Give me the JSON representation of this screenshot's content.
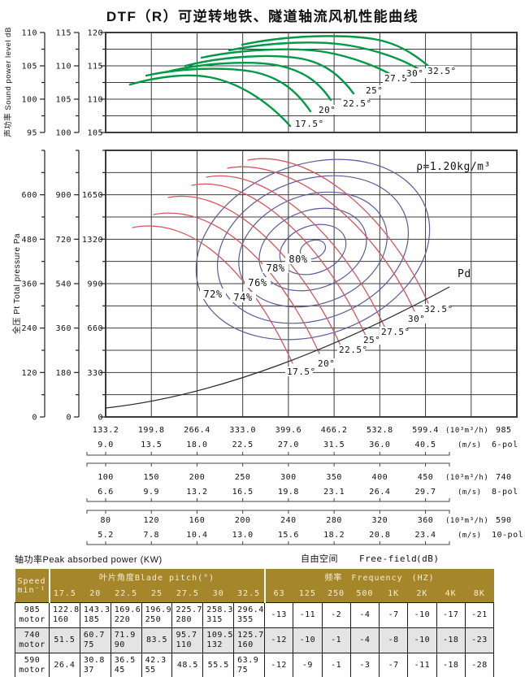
{
  "page_title": "DTF（R）可逆转地铁、隧道轴流风机性能曲线",
  "colors": {
    "curve_green": "#009946",
    "curve_red": "#d4555e",
    "contour_blue": "#5b5b9e",
    "pd_black": "#2a2a2a",
    "grid": "#3c3c3c",
    "table_header_bg": "#a6862a",
    "table_header_fg": "#f6efd4",
    "shaded_row": "#e4e4e4"
  },
  "top_chart": {
    "y_axis_title": "声功率 Sound power level dB",
    "y_axes": [
      {
        "labels": [
          "110",
          "105",
          "100",
          "95"
        ]
      },
      {
        "labels": [
          "115",
          "110",
          "105",
          "100"
        ]
      },
      {
        "labels": [
          "120",
          "115",
          "110",
          "105"
        ]
      }
    ],
    "curve_labels": [
      "17.5°",
      "20°",
      "22.5°",
      "25°",
      "27.5°",
      "30°",
      "32.5°"
    ]
  },
  "main_chart": {
    "y_axis_title": "全压 Pt Total pressure Pa",
    "y_axes": [
      {
        "labels": [
          "600",
          "480",
          "360",
          "240",
          "120",
          "0"
        ]
      },
      {
        "labels": [
          "900",
          "720",
          "540",
          "360",
          "180",
          "0"
        ]
      },
      {
        "labels": [
          "1650",
          "1320",
          "990",
          "660",
          "330",
          "0"
        ]
      }
    ],
    "density_label": "ρ=1.20kg/m³",
    "pd_label": "Pd",
    "efficiency_labels": [
      "72%",
      "74%",
      "76%",
      "78%",
      "80%"
    ],
    "pitch_labels": [
      "17.5°",
      "20°",
      "22.5°",
      "25°",
      "27.5°",
      "30°",
      "32.5°"
    ]
  },
  "x_scales": [
    {
      "flow": [
        "133.2",
        "199.8",
        "266.4",
        "333.0",
        "399.6",
        "466.2",
        "532.8",
        "599.4"
      ],
      "flow_unit": "(10³m³/h)",
      "speed": "985",
      "vel": [
        "9.0",
        "13.5",
        "18.0",
        "22.5",
        "27.0",
        "31.5",
        "36.0",
        "40.5"
      ],
      "vel_unit": "(m/s)",
      "pole": "6-pol"
    },
    {
      "flow": [
        "100",
        "150",
        "200",
        "250",
        "300",
        "350",
        "400",
        "450"
      ],
      "flow_unit": "(10³m³/h)",
      "speed": "740",
      "vel": [
        "6.6",
        "9.9",
        "13.2",
        "16.5",
        "19.8",
        "23.1",
        "26.4",
        "29.7"
      ],
      "vel_unit": "(m/s)",
      "pole": "8-pol"
    },
    {
      "flow": [
        "80",
        "120",
        "160",
        "200",
        "240",
        "280",
        "320",
        "360"
      ],
      "flow_unit": "(10³m³/h)",
      "speed": "590",
      "vel": [
        "5.2",
        "7.8",
        "10.4",
        "13.0",
        "15.6",
        "18.2",
        "20.8",
        "23.4"
      ],
      "vel_unit": "(m/s)",
      "pole": "10-pol"
    }
  ],
  "footer": {
    "left": "轴功率Peak absorbed power (KW)",
    "free_field_cn": "自由空间",
    "free_field_en": "Free-field",
    "free_field_unit": "(dB)"
  },
  "table": {
    "col1_line1": "Speed",
    "col1_line2": "min⁻¹",
    "pitch_header": "叶片角度Blade pitch(°)",
    "freq_header": "频率　Frequency　(HZ)",
    "pitch_cols": [
      "17.5",
      "20",
      "22.5",
      "25",
      "27.5",
      "30",
      "32.5"
    ],
    "freq_cols": [
      "63",
      "125",
      "250",
      "500",
      "1K",
      "2K",
      "4K",
      "8K"
    ],
    "rows": [
      {
        "speed": "985",
        "sub": "motor",
        "shaded": false,
        "pitch": [
          [
            "122.8",
            "160"
          ],
          [
            "143.3",
            "185"
          ],
          [
            "169.6",
            "220"
          ],
          [
            "196.9",
            "250"
          ],
          [
            "225.7",
            "280"
          ],
          [
            "258.3",
            "315"
          ],
          [
            "296.4",
            "355"
          ]
        ],
        "freq": [
          "-13",
          "-11",
          "-2",
          "-4",
          "-7",
          "-10",
          "-17",
          "-21"
        ]
      },
      {
        "speed": "740",
        "sub": "motor",
        "shaded": true,
        "pitch": [
          [
            "51.5"
          ],
          [
            "60.7",
            "75"
          ],
          [
            "71.9",
            "90"
          ],
          [
            "83.5"
          ],
          [
            "95.7",
            "110"
          ],
          [
            "109.5",
            "132"
          ],
          [
            "125.7",
            "160"
          ]
        ],
        "freq": [
          "-12",
          "-10",
          "-1",
          "-4",
          "-8",
          "-10",
          "-18",
          "-23"
        ]
      },
      {
        "speed": "590",
        "sub": "motor",
        "shaded": false,
        "pitch": [
          [
            "26.4"
          ],
          [
            "30.8",
            "37"
          ],
          [
            "36.5",
            "45"
          ],
          [
            "42.3",
            "55"
          ],
          [
            "48.5"
          ],
          [
            "55.5"
          ],
          [
            "63.9",
            "75"
          ]
        ],
        "freq": [
          "-12",
          "-9",
          "-1",
          "-3",
          "-7",
          "-11",
          "-18",
          "-28"
        ]
      }
    ]
  },
  "chart_data": [
    {
      "type": "line",
      "name": "sound-power-level-curves",
      "ylabel": "声功率 Sound power level dB",
      "grid": true,
      "y_scales": [
        {
          "min": 95,
          "max": 110,
          "step": 5
        },
        {
          "min": 100,
          "max": 115,
          "step": 5
        },
        {
          "min": 105,
          "max": 120,
          "step": 5
        }
      ],
      "x_axis": "shared with pressure chart flow scales",
      "series": [
        {
          "name": "17.5°",
          "approx_peak_dB_top_scale": 112.5
        },
        {
          "name": "20°",
          "approx_peak_dB_top_scale": 114
        },
        {
          "name": "22.5°",
          "approx_peak_dB_top_scale": 115
        },
        {
          "name": "25°",
          "approx_peak_dB_top_scale": 116
        },
        {
          "name": "27.5°",
          "approx_peak_dB_top_scale": 117.5
        },
        {
          "name": "30°",
          "approx_peak_dB_top_scale": 118.5
        },
        {
          "name": "32.5°",
          "approx_peak_dB_top_scale": 119
        }
      ],
      "legend_position": "labels at right end of each curve"
    },
    {
      "type": "line",
      "name": "total-pressure-performance-field",
      "ylabel": "全压 Pt Total pressure Pa",
      "air_density": "ρ=1.20kg/m³",
      "grid": true,
      "y_scales": [
        {
          "min": 0,
          "max": 600,
          "label_step": 120,
          "unit": "Pa"
        },
        {
          "min": 0,
          "max": 900,
          "label_step": 180,
          "unit": "Pa"
        },
        {
          "min": 0,
          "max": 1650,
          "label_step": 330,
          "unit": "Pa"
        }
      ],
      "x_scales": [
        {
          "speed_label": "985",
          "pole": "6-pol",
          "flow_unit": "10³m³/h",
          "flow": [
            133.2,
            199.8,
            266.4,
            333.0,
            399.6,
            466.2,
            532.8,
            599.4
          ],
          "velocity_unit": "m/s",
          "velocity": [
            9.0,
            13.5,
            18.0,
            22.5,
            27.0,
            31.5,
            36.0,
            40.5
          ]
        },
        {
          "speed_label": "740",
          "pole": "8-pol",
          "flow_unit": "10³m³/h",
          "flow": [
            100,
            150,
            200,
            250,
            300,
            350,
            400,
            450
          ],
          "velocity_unit": "m/s",
          "velocity": [
            6.6,
            9.9,
            13.2,
            16.5,
            19.8,
            23.1,
            26.4,
            29.7
          ]
        },
        {
          "speed_label": "590",
          "pole": "10-pol",
          "flow_unit": "10³m³/h",
          "flow": [
            80,
            120,
            160,
            200,
            240,
            280,
            320,
            360
          ],
          "velocity_unit": "m/s",
          "velocity": [
            5.2,
            7.8,
            10.4,
            13.0,
            15.6,
            18.2,
            20.8,
            23.4
          ]
        }
      ],
      "efficiency_contours_percent": [
        72,
        74,
        76,
        78,
        80
      ],
      "blade_pitch_curves_deg": [
        17.5,
        20,
        22.5,
        25,
        27.5,
        30,
        32.5
      ],
      "extra_curves": [
        {
          "name": "Pd",
          "description": "dynamic pressure curve rising with flow"
        }
      ]
    },
    {
      "type": "table",
      "name": "轴功率Peak absorbed power (KW)",
      "pitch_deg": [
        17.5,
        20,
        22.5,
        25,
        27.5,
        30,
        32.5
      ],
      "rows": [
        {
          "speed": "985 motor",
          "values": [
            [
              122.8,
              160
            ],
            [
              143.3,
              185
            ],
            [
              169.6,
              220
            ],
            [
              196.9,
              250
            ],
            [
              225.7,
              280
            ],
            [
              258.3,
              315
            ],
            [
              296.4,
              355
            ]
          ]
        },
        {
          "speed": "740 motor",
          "values": [
            [
              51.5
            ],
            [
              60.7,
              75
            ],
            [
              71.9,
              90
            ],
            [
              83.5
            ],
            [
              95.7,
              110
            ],
            [
              109.5,
              132
            ],
            [
              125.7,
              160
            ]
          ]
        },
        {
          "speed": "590 motor",
          "values": [
            [
              26.4
            ],
            [
              30.8,
              37
            ],
            [
              36.5,
              45
            ],
            [
              42.3,
              55
            ],
            [
              48.5
            ],
            [
              55.5
            ],
            [
              63.9,
              75
            ]
          ]
        }
      ]
    },
    {
      "type": "table",
      "name": "自由空间 Free-field (dB)",
      "frequency_hz": [
        "63",
        "125",
        "250",
        "500",
        "1K",
        "2K",
        "4K",
        "8K"
      ],
      "rows": [
        {
          "speed": "985 motor",
          "values": [
            -13,
            -11,
            -2,
            -4,
            -7,
            -10,
            -17,
            -21
          ]
        },
        {
          "speed": "740 motor",
          "values": [
            -12,
            -10,
            -1,
            -4,
            -8,
            -10,
            -18,
            -23
          ]
        },
        {
          "speed": "590 motor",
          "values": [
            -12,
            -9,
            -1,
            -3,
            -7,
            -11,
            -18,
            -28
          ]
        }
      ]
    }
  ]
}
